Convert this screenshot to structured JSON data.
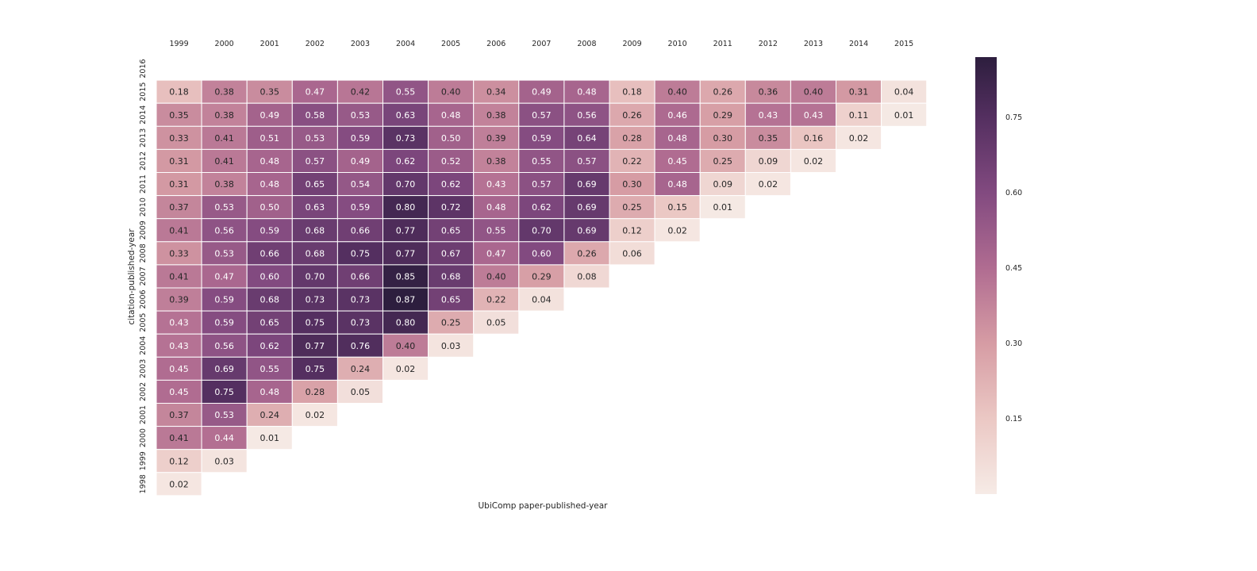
{
  "chart_data": {
    "type": "heatmap",
    "title": "",
    "xlabel": "UbiComp paper-published-year",
    "ylabel": "citation-published-year",
    "x_categories": [
      "1999",
      "2000",
      "2001",
      "2002",
      "2003",
      "2004",
      "2005",
      "2006",
      "2007",
      "2008",
      "2009",
      "2010",
      "2011",
      "2012",
      "2013",
      "2014",
      "2015"
    ],
    "y_categories": [
      "2016",
      "2015",
      "2014",
      "2013",
      "2012",
      "2011",
      "2010",
      "2009",
      "2008",
      "2007",
      "2006",
      "2005",
      "2004",
      "2003",
      "2002",
      "2001",
      "2000",
      "1999",
      "1998"
    ],
    "values": [
      [
        null,
        null,
        null,
        null,
        null,
        null,
        null,
        null,
        null,
        null,
        null,
        null,
        null,
        null,
        null,
        null,
        null
      ],
      [
        0.18,
        0.38,
        0.35,
        0.47,
        0.42,
        0.55,
        0.4,
        0.34,
        0.49,
        0.48,
        0.18,
        0.4,
        0.26,
        0.36,
        0.4,
        0.31,
        0.04
      ],
      [
        0.35,
        0.38,
        0.49,
        0.58,
        0.53,
        0.63,
        0.48,
        0.38,
        0.57,
        0.56,
        0.26,
        0.46,
        0.29,
        0.43,
        0.43,
        0.11,
        0.01
      ],
      [
        0.33,
        0.41,
        0.51,
        0.53,
        0.59,
        0.73,
        0.5,
        0.39,
        0.59,
        0.64,
        0.28,
        0.48,
        0.3,
        0.35,
        0.16,
        0.02,
        null
      ],
      [
        0.31,
        0.41,
        0.48,
        0.57,
        0.49,
        0.62,
        0.52,
        0.38,
        0.55,
        0.57,
        0.22,
        0.45,
        0.25,
        0.09,
        0.02,
        null,
        null
      ],
      [
        0.31,
        0.38,
        0.48,
        0.65,
        0.54,
        0.7,
        0.62,
        0.43,
        0.57,
        0.69,
        0.3,
        0.48,
        0.09,
        0.02,
        null,
        null,
        null
      ],
      [
        0.37,
        0.53,
        0.5,
        0.63,
        0.59,
        0.8,
        0.72,
        0.48,
        0.62,
        0.69,
        0.25,
        0.15,
        0.01,
        null,
        null,
        null,
        null
      ],
      [
        0.41,
        0.56,
        0.59,
        0.68,
        0.66,
        0.77,
        0.65,
        0.55,
        0.7,
        0.69,
        0.12,
        0.02,
        null,
        null,
        null,
        null,
        null
      ],
      [
        0.33,
        0.53,
        0.66,
        0.68,
        0.75,
        0.77,
        0.67,
        0.47,
        0.6,
        0.26,
        0.06,
        null,
        null,
        null,
        null,
        null,
        null
      ],
      [
        0.41,
        0.47,
        0.6,
        0.7,
        0.66,
        0.85,
        0.68,
        0.4,
        0.29,
        0.08,
        null,
        null,
        null,
        null,
        null,
        null,
        null
      ],
      [
        0.39,
        0.59,
        0.68,
        0.73,
        0.73,
        0.87,
        0.65,
        0.22,
        0.04,
        null,
        null,
        null,
        null,
        null,
        null,
        null,
        null
      ],
      [
        0.43,
        0.59,
        0.65,
        0.75,
        0.73,
        0.8,
        0.25,
        0.05,
        null,
        null,
        null,
        null,
        null,
        null,
        null,
        null,
        null
      ],
      [
        0.43,
        0.56,
        0.62,
        0.77,
        0.76,
        0.4,
        0.03,
        null,
        null,
        null,
        null,
        null,
        null,
        null,
        null,
        null,
        null
      ],
      [
        0.45,
        0.69,
        0.55,
        0.75,
        0.24,
        0.02,
        null,
        null,
        null,
        null,
        null,
        null,
        null,
        null,
        null,
        null,
        null
      ],
      [
        0.45,
        0.75,
        0.48,
        0.28,
        0.05,
        null,
        null,
        null,
        null,
        null,
        null,
        null,
        null,
        null,
        null,
        null,
        null
      ],
      [
        0.37,
        0.53,
        0.24,
        0.02,
        null,
        null,
        null,
        null,
        null,
        null,
        null,
        null,
        null,
        null,
        null,
        null,
        null
      ],
      [
        0.41,
        0.44,
        0.01,
        null,
        null,
        null,
        null,
        null,
        null,
        null,
        null,
        null,
        null,
        null,
        null,
        null,
        null
      ],
      [
        0.12,
        0.03,
        null,
        null,
        null,
        null,
        null,
        null,
        null,
        null,
        null,
        null,
        null,
        null,
        null,
        null,
        null
      ],
      [
        0.02,
        null,
        null,
        null,
        null,
        null,
        null,
        null,
        null,
        null,
        null,
        null,
        null,
        null,
        null,
        null,
        null
      ]
    ],
    "colorbar": {
      "ticks": [
        "0.15",
        "0.30",
        "0.45",
        "0.60",
        "0.75"
      ],
      "range": [
        0.0,
        0.87
      ],
      "low_color": "#f6ebe6",
      "high_color": "#2d1e3e"
    },
    "x_axis_position": "top",
    "legend": "colorbar-right"
  }
}
